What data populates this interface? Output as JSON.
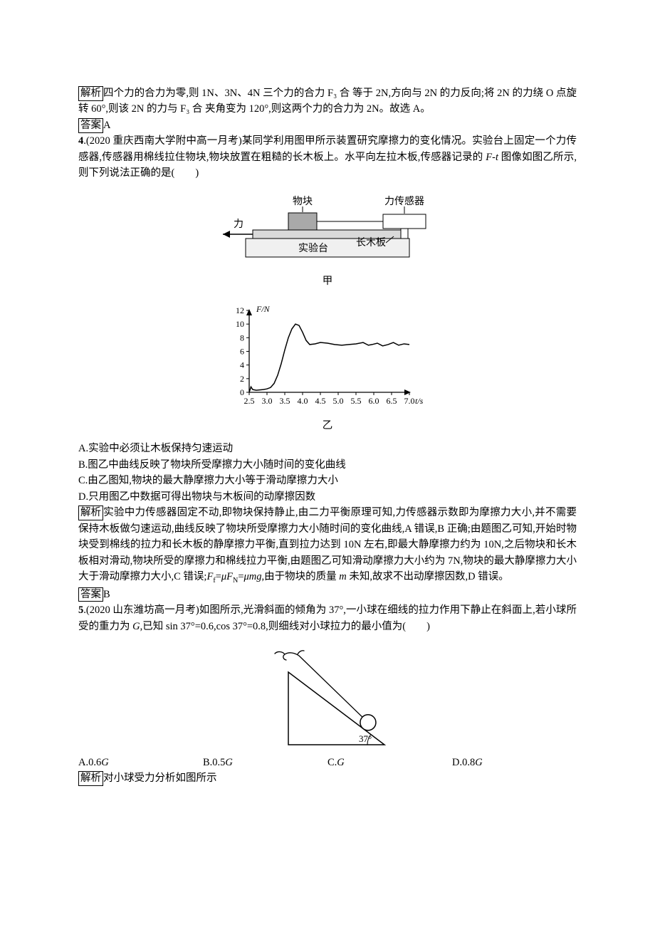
{
  "p1": {
    "prefix_box": "解析",
    "text": "四个力的合力为零,则 1N、3N、4N 三个力的合力 F₃ 合 等于 2N,方向与 2N 的力反向;将 2N 的力绕 O 点旋转 60°,则该 2N 的力与 F₃ 合 夹角变为 120°,则这两个力的合力为 2N。故选 A。"
  },
  "ans1": {
    "prefix_box": "答案",
    "text": "A"
  },
  "q4": {
    "num_bold": "4",
    "text": ".(2020 重庆西南大学附中高一月考)某同学利用图甲所示装置研究摩擦力的变化情况。实验台上固定一个力传感器,传感器用棉线拉住物块,物块放置在粗糙的长木板上。水平向左拉木板,传感器记录的 F-t 图像如图乙所示,则下列说法正确的是(　　)"
  },
  "diagram1": {
    "labels": {
      "block": "物块",
      "sensor": "力传感器",
      "force": "力",
      "board": "长木板",
      "table": "实验台"
    },
    "colors": {
      "stroke": "#000000",
      "block_fill": "#a9a9a9",
      "board_fill": "#d9d9d9",
      "table_fill": "#f0f0f0"
    },
    "caption": "甲"
  },
  "chart": {
    "type": "line",
    "ylabel": "F/N",
    "xlabel": "t/s",
    "xlim": [
      2.5,
      7.0
    ],
    "ylim": [
      0,
      12
    ],
    "xticks": [
      "2.5",
      "3.0",
      "3.5",
      "4.0",
      "4.5",
      "5.0",
      "5.5",
      "6.0",
      "6.5",
      "7.0"
    ],
    "yticks": [
      0,
      2,
      4,
      6,
      8,
      10,
      12
    ],
    "xtick_vals": [
      2.5,
      3.0,
      3.5,
      4.0,
      4.5,
      5.0,
      5.5,
      6.0,
      6.5,
      7.0
    ],
    "stroke": "#000000",
    "stroke_width": 1.5,
    "background_color": "#ffffff",
    "font_size": 12,
    "data": [
      {
        "x": 2.5,
        "y": 0
      },
      {
        "x": 2.55,
        "y": 0.8
      },
      {
        "x": 2.6,
        "y": 0.4
      },
      {
        "x": 2.7,
        "y": 0.3
      },
      {
        "x": 2.8,
        "y": 0.35
      },
      {
        "x": 2.9,
        "y": 0.4
      },
      {
        "x": 3.0,
        "y": 0.5
      },
      {
        "x": 3.1,
        "y": 0.7
      },
      {
        "x": 3.2,
        "y": 1.3
      },
      {
        "x": 3.3,
        "y": 2.5
      },
      {
        "x": 3.4,
        "y": 4.2
      },
      {
        "x": 3.5,
        "y": 6.2
      },
      {
        "x": 3.6,
        "y": 8.0
      },
      {
        "x": 3.7,
        "y": 9.3
      },
      {
        "x": 3.8,
        "y": 10.0
      },
      {
        "x": 3.9,
        "y": 9.8
      },
      {
        "x": 4.0,
        "y": 8.8
      },
      {
        "x": 4.1,
        "y": 7.6
      },
      {
        "x": 4.2,
        "y": 7.0
      },
      {
        "x": 4.35,
        "y": 7.1
      },
      {
        "x": 4.5,
        "y": 7.3
      },
      {
        "x": 4.7,
        "y": 7.2
      },
      {
        "x": 4.9,
        "y": 7.0
      },
      {
        "x": 5.1,
        "y": 6.9
      },
      {
        "x": 5.3,
        "y": 7.0
      },
      {
        "x": 5.5,
        "y": 7.1
      },
      {
        "x": 5.7,
        "y": 7.3
      },
      {
        "x": 5.85,
        "y": 6.9
      },
      {
        "x": 5.95,
        "y": 7.0
      },
      {
        "x": 6.1,
        "y": 7.2
      },
      {
        "x": 6.25,
        "y": 6.8
      },
      {
        "x": 6.4,
        "y": 7.0
      },
      {
        "x": 6.55,
        "y": 7.3
      },
      {
        "x": 6.7,
        "y": 6.9
      },
      {
        "x": 6.85,
        "y": 7.1
      },
      {
        "x": 7.0,
        "y": 7.0
      }
    ],
    "caption": "乙"
  },
  "q4_opts": {
    "A": "A.实验中必须让木板保持匀速运动",
    "B": "B.图乙中曲线反映了物块所受摩擦力大小随时间的变化曲线",
    "C": "C.由乙图知,物块的最大静摩擦力大小等于滑动摩擦力大小",
    "D": "D.只用图乙中数据可得出物块与木板间的动摩擦因数"
  },
  "expl4": {
    "prefix_box": "解析",
    "text": "实验中力传感器固定不动,即物块保持静止,由二力平衡原理可知,力传感器示数即为摩擦力大小,并不需要保持木板做匀速运动,曲线反映了物块所受摩擦力大小随时间的变化曲线,A 错误,B 正确;由题图乙可知,开始时物块受到棉线的拉力和长木板的静摩擦力平衡,直到拉力达到 10N 左右,即最大静摩擦力约为 10N,之后物块和长木板相对滑动,物块所受的摩擦力和棉线拉力平衡,由题图乙可知滑动摩擦力大小约为 7N,物块的最大静摩擦力大小大于滑动摩擦力大小,C 错误;Ff=μFN=μmg,由于物块的质量 m 未知,故求不出动摩擦因数,D 错误。"
  },
  "ans4": {
    "prefix_box": "答案",
    "text": "B"
  },
  "q5": {
    "num_bold": "5",
    "text": ".(2020 山东潍坊高一月考)如图所示,光滑斜面的倾角为 37°,一小球在细线的拉力作用下静止在斜面上,若小球所受的重力为 G,已知 sin 37°=0.6,cos 37°=0.8,则细线对小球拉力的最小值为(　　)"
  },
  "diagram2": {
    "angle_label": "37°",
    "stroke": "#000000"
  },
  "q5_opts": {
    "A": "A.0.6G",
    "B": "B.0.5G",
    "C": "C.G",
    "D": "D.0.8G"
  },
  "expl5": {
    "prefix_box": "解析",
    "text": "对小球受力分析如图所示"
  }
}
